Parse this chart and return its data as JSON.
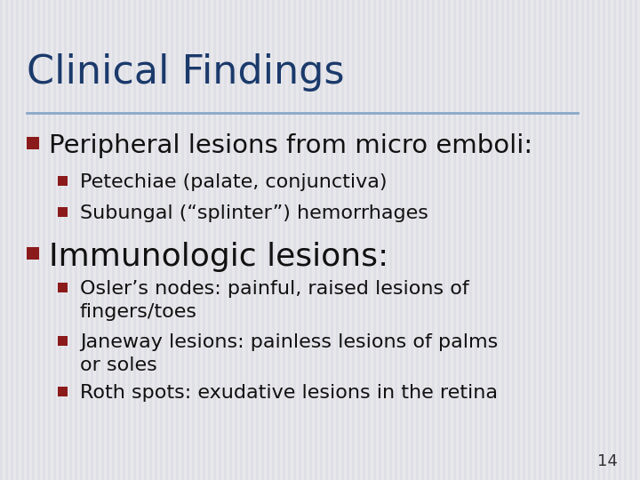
{
  "title": "Clinical Findings",
  "title_color": "#1B3A6B",
  "title_fontsize": 32,
  "background_color": "#E8E8EC",
  "stripe_color": "#DCDCE4",
  "divider_color": "#8AA8C8",
  "bullet_color": "#8B1A1A",
  "page_number": "14",
  "content": [
    {
      "level": 1,
      "text": "Peripheral lesions from micro emboli:",
      "fontsize": 21,
      "color": "#111111"
    },
    {
      "level": 2,
      "text": "Petechiae (palate, conjunctiva)",
      "fontsize": 16,
      "color": "#111111"
    },
    {
      "level": 2,
      "text": "Subungal (“splinter”) hemorrhages",
      "fontsize": 16,
      "color": "#111111"
    },
    {
      "level": 1,
      "text": "Immunologic lesions:",
      "fontsize": 26,
      "color": "#111111"
    },
    {
      "level": 2,
      "text": "Osler’s nodes: painful, raised lesions of\nfingers/toes",
      "fontsize": 16,
      "color": "#111111"
    },
    {
      "level": 2,
      "text": "Janeway lesions: painless lesions of palms\nor soles",
      "fontsize": 16,
      "color": "#111111"
    },
    {
      "level": 2,
      "text": "Roth spots: exudative lesions in the retina",
      "fontsize": 16,
      "color": "#111111"
    }
  ]
}
